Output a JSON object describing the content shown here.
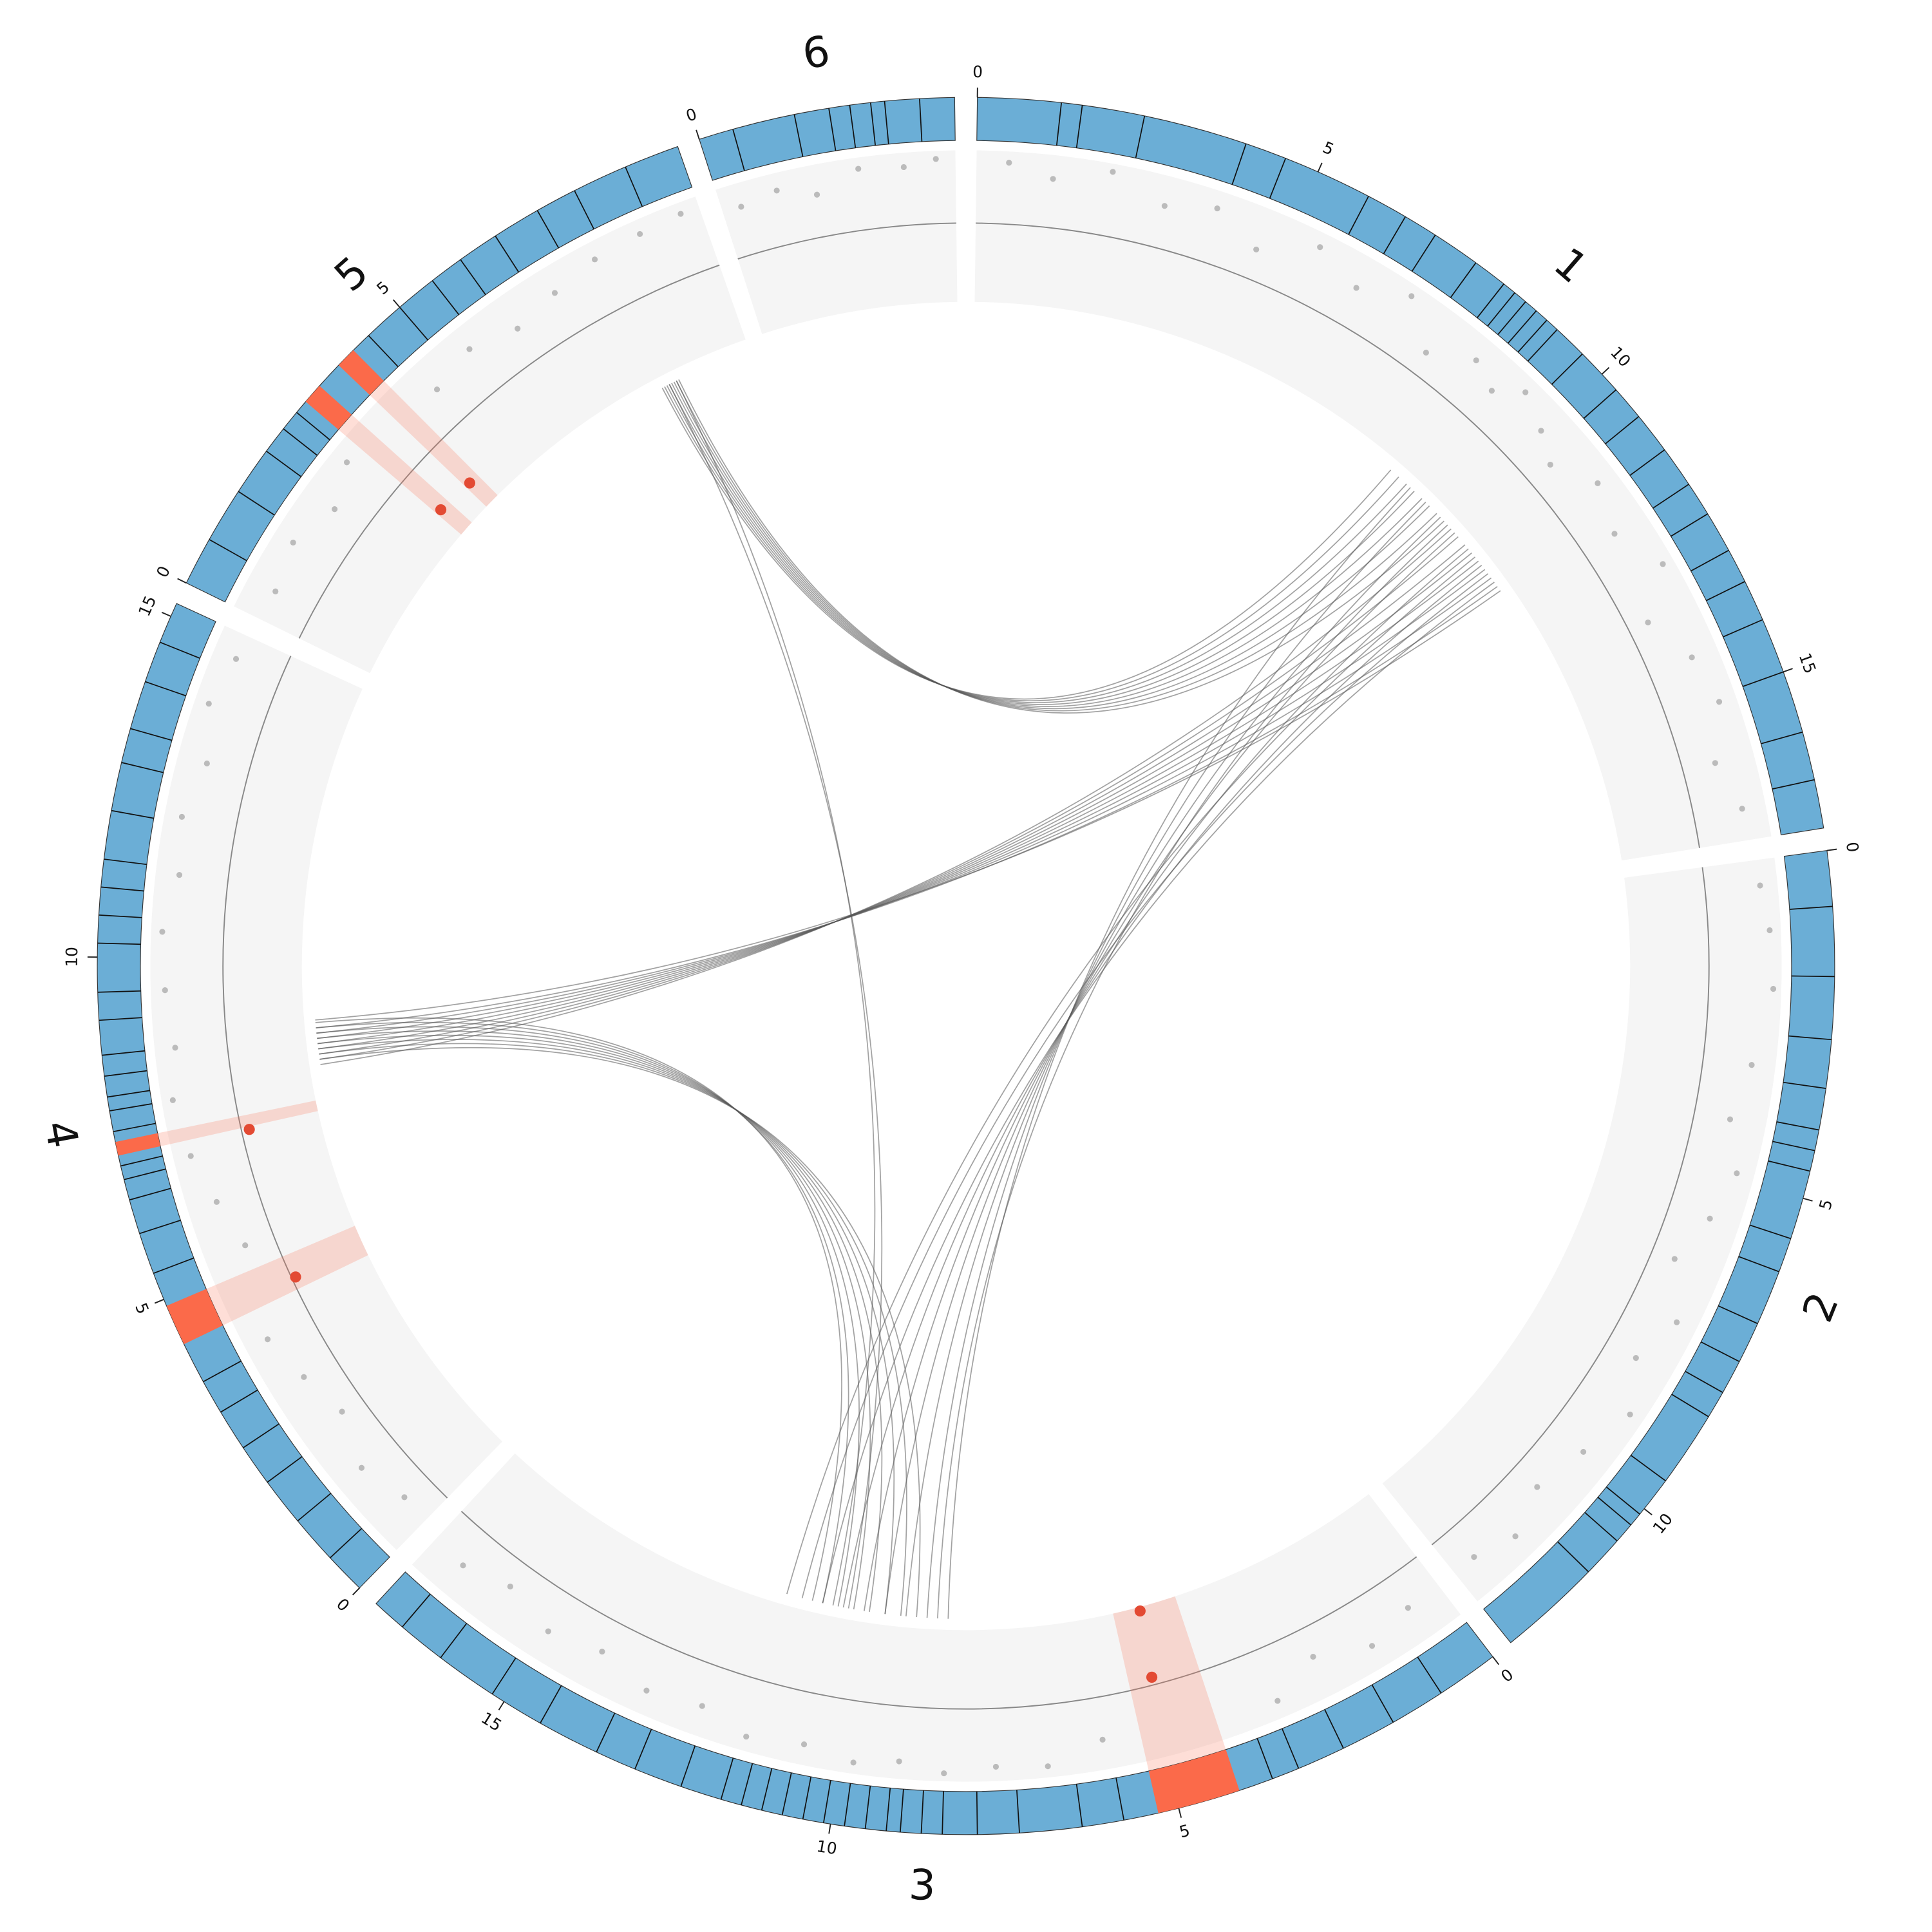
{
  "chart_data": {
    "type": "circos",
    "colors": {
      "ideogram": "#6baed6",
      "band": "#111111",
      "highlight": "#fb6a4a",
      "track": "#f5f5f5",
      "point": "#bbbbbb",
      "marker": "#e34a33",
      "link": "#555555"
    },
    "chromosomes": [
      {
        "name": "1",
        "length": 17.3,
        "ticks": [
          0,
          5,
          10,
          15
        ],
        "bands": [
          1.2,
          1.5,
          2.4,
          3.9,
          4.5,
          5.8,
          6.4,
          6.9,
          7.6,
          8.1,
          8.3,
          8.5,
          8.7,
          8.9,
          9.1,
          9.6,
          10.3,
          10.8,
          11.4,
          12.0,
          12.5,
          13.1,
          13.6,
          14.2,
          15.0,
          15.9,
          16.6
        ],
        "highlights": [],
        "points": [
          [
            0.5,
            0.9
          ],
          [
            1.2,
            0.7
          ],
          [
            2.1,
            0.95
          ],
          [
            3.0,
            0.6
          ],
          [
            3.8,
            0.8
          ],
          [
            4.6,
            0.4
          ],
          [
            5.5,
            0.85
          ],
          [
            6.3,
            0.55
          ],
          [
            7.1,
            0.9
          ],
          [
            7.8,
            0.3
          ],
          [
            8.5,
            0.7
          ],
          [
            9.0,
            0.5
          ],
          [
            9.4,
            0.85
          ],
          [
            10.0,
            0.6
          ],
          [
            10.5,
            0.35
          ],
          [
            11.2,
            0.75
          ],
          [
            12.0,
            0.5
          ],
          [
            12.8,
            0.9
          ],
          [
            13.5,
            0.25
          ],
          [
            14.3,
            0.65
          ],
          [
            15.1,
            0.8
          ],
          [
            16.0,
            0.45
          ],
          [
            16.8,
            0.7
          ]
        ],
        "markers": []
      },
      {
        "name": "2",
        "length": 12.7,
        "ticks": [
          0,
          5,
          10
        ],
        "bands": [
          0.8,
          1.8,
          2.7,
          3.4,
          4.0,
          4.3,
          4.6,
          5.6,
          6.1,
          6.9,
          7.5,
          8.0,
          8.4,
          9.5,
          10.1,
          10.3,
          10.6,
          11.2
        ],
        "highlights": [],
        "points": [
          [
            0.4,
            0.8
          ],
          [
            1.1,
            0.9
          ],
          [
            2.0,
            0.95
          ],
          [
            3.2,
            0.7
          ],
          [
            4.1,
            0.5
          ],
          [
            4.9,
            0.8
          ],
          [
            5.7,
            0.6
          ],
          [
            6.5,
            0.3
          ],
          [
            7.4,
            0.75
          ],
          [
            8.2,
            0.45
          ],
          [
            9.0,
            0.85
          ],
          [
            9.9,
            0.6
          ],
          [
            10.8,
            0.4
          ],
          [
            11.6,
            0.7
          ],
          [
            12.3,
            0.5
          ]
        ],
        "markers": []
      },
      {
        "name": "3",
        "length": 17.3,
        "ticks": [
          0,
          5,
          10,
          15
        ],
        "bands": [
          0.9,
          1.7,
          2.5,
          3.2,
          3.6,
          5.8,
          6.4,
          7.3,
          7.9,
          8.4,
          8.7,
          9.0,
          9.2,
          9.5,
          9.8,
          10.1,
          10.4,
          10.7,
          11.0,
          11.3,
          11.6,
          12.2,
          12.9,
          13.5,
          14.4,
          15.2,
          16.1,
          16.8
        ],
        "highlights": [
          [
            4.1,
            5.3
          ]
        ],
        "points": [
          [
            0.6,
            0.5
          ],
          [
            1.4,
            0.7
          ],
          [
            2.3,
            0.4
          ],
          [
            3.1,
            0.8
          ],
          [
            5.9,
            0.6
          ],
          [
            6.8,
            0.9
          ],
          [
            7.6,
            0.85
          ],
          [
            8.4,
            0.95
          ],
          [
            9.1,
            0.8
          ],
          [
            9.8,
            0.9
          ],
          [
            10.6,
            0.75
          ],
          [
            11.5,
            0.85
          ],
          [
            12.3,
            0.6
          ],
          [
            13.2,
            0.7
          ],
          [
            14.1,
            0.45
          ],
          [
            15.0,
            0.6
          ],
          [
            15.9,
            0.35
          ],
          [
            16.7,
            0.55
          ]
        ],
        "markers": [
          [
            4.8,
            0.05
          ],
          [
            4.9,
            0.9
          ]
        ]
      },
      {
        "name": "4",
        "length": 15.2,
        "ticks": [
          0,
          5,
          10,
          15
        ],
        "bands": [
          0.6,
          1.3,
          2.0,
          2.6,
          3.2,
          3.7,
          5.4,
          6.0,
          6.5,
          6.8,
          7.0,
          7.5,
          7.8,
          8.0,
          8.3,
          8.6,
          9.1,
          9.5,
          10.2,
          10.6,
          11.0,
          11.4,
          12.1,
          12.8,
          13.3,
          14.0,
          14.6
        ],
        "highlights": [
          [
            4.3,
            4.9
          ],
          [
            7.15,
            7.35
          ]
        ],
        "points": [
          [
            0.5,
            0.4
          ],
          [
            1.3,
            0.6
          ],
          [
            2.2,
            0.3
          ],
          [
            3.0,
            0.5
          ],
          [
            3.8,
            0.7
          ],
          [
            5.3,
            0.4
          ],
          [
            6.1,
            0.6
          ],
          [
            6.9,
            0.8
          ],
          [
            7.8,
            0.9
          ],
          [
            8.6,
            0.75
          ],
          [
            9.5,
            0.85
          ],
          [
            10.4,
            0.9
          ],
          [
            11.3,
            0.7
          ],
          [
            12.2,
            0.8
          ],
          [
            13.1,
            0.6
          ],
          [
            14.0,
            0.85
          ],
          [
            14.8,
            0.7
          ]
        ],
        "markers": [
          [
            7.1,
            0.9
          ],
          [
            4.5,
            0.95
          ]
        ]
      },
      {
        "name": "5",
        "length": 9.6,
        "ticks": [
          0,
          5
        ],
        "bands": [
          0.7,
          1.5,
          2.2,
          2.6,
          2.9,
          4.4,
          5.0,
          5.6,
          6.1,
          6.7,
          7.4,
          8.0,
          8.8
        ],
        "highlights": [
          [
            3.1,
            3.4
          ],
          [
            3.8,
            4.1
          ]
        ],
        "points": [
          [
            0.5,
            0.6
          ],
          [
            1.3,
            0.75
          ],
          [
            2.1,
            0.5
          ],
          [
            2.8,
            0.8
          ],
          [
            4.6,
            0.55
          ],
          [
            5.4,
            0.7
          ],
          [
            6.2,
            0.5
          ],
          [
            7.0,
            0.65
          ],
          [
            7.8,
            0.8
          ],
          [
            8.6,
            0.85
          ],
          [
            9.3,
            0.9
          ]
        ],
        "markers": [
          [
            3.9,
            0.36
          ],
          [
            3.2,
            0.4
          ]
        ]
      },
      {
        "name": "6",
        "length": 3.7,
        "ticks": [
          0
        ],
        "bands": [
          0.5,
          1.4,
          1.9,
          2.2,
          2.5,
          2.7,
          3.2
        ],
        "highlights": [],
        "points": [
          [
            0.3,
            0.7
          ],
          [
            0.9,
            0.8
          ],
          [
            1.5,
            0.6
          ],
          [
            2.2,
            0.9
          ],
          [
            2.9,
            0.85
          ],
          [
            3.4,
            0.95
          ]
        ],
        "markers": []
      }
    ],
    "links": [
      [
        0,
        8.6,
        4,
        7.8
      ],
      [
        0,
        8.8,
        4,
        7.85
      ],
      [
        0,
        9.0,
        4,
        7.9
      ],
      [
        0,
        9.2,
        4,
        7.95
      ],
      [
        0,
        9.4,
        4,
        8.0
      ],
      [
        0,
        9.6,
        4,
        8.05
      ],
      [
        0,
        9.8,
        4,
        8.1
      ],
      [
        0,
        10.0,
        4,
        8.15
      ],
      [
        0,
        10.2,
        3,
        8.0
      ],
      [
        0,
        10.4,
        3,
        8.1
      ],
      [
        0,
        10.6,
        3,
        8.2
      ],
      [
        0,
        10.8,
        3,
        8.3
      ],
      [
        0,
        11.0,
        3,
        8.4
      ],
      [
        0,
        11.2,
        3,
        8.5
      ],
      [
        0,
        11.4,
        3,
        8.6
      ],
      [
        0,
        11.6,
        3,
        8.7
      ],
      [
        0,
        11.7,
        3,
        8.85
      ],
      [
        0,
        9.1,
        2,
        8.4
      ],
      [
        0,
        9.5,
        2,
        8.8
      ],
      [
        0,
        9.9,
        2,
        9.2
      ],
      [
        0,
        10.3,
        2,
        9.6
      ],
      [
        0,
        10.7,
        2,
        10.0
      ],
      [
        0,
        11.1,
        2,
        10.4
      ],
      [
        0,
        11.5,
        2,
        10.8
      ],
      [
        0,
        11.3,
        2,
        11.2
      ],
      [
        0,
        10.9,
        2,
        11.5
      ],
      [
        0,
        10.1,
        2,
        8.6
      ],
      [
        3,
        8.1,
        2,
        9.0
      ],
      [
        3,
        8.2,
        2,
        9.3
      ],
      [
        3,
        8.3,
        2,
        9.6
      ],
      [
        3,
        8.4,
        2,
        9.9
      ],
      [
        3,
        8.5,
        2,
        10.2
      ],
      [
        3,
        8.6,
        2,
        10.5
      ],
      [
        3,
        8.7,
        2,
        10.8
      ],
      [
        3,
        8.8,
        2,
        11.0
      ],
      [
        4,
        7.95,
        2,
        10.3
      ],
      [
        4,
        8.1,
        2,
        10.6
      ]
    ]
  }
}
